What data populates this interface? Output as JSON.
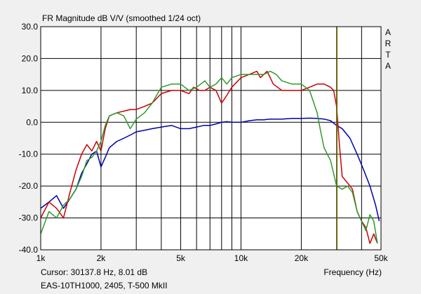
{
  "chart_data": {
    "type": "line",
    "title": "FR Magnitude dB V/V (smoothed 1/24 oct)",
    "xlabel": "Frequency (Hz)",
    "ylabel": "",
    "x_scale": "log",
    "xlim": [
      1000,
      50000
    ],
    "ylim": [
      -40,
      30
    ],
    "grid": true,
    "x_ticks": [
      {
        "value": 1000,
        "label": "1k"
      },
      {
        "value": 2000,
        "label": "2k"
      },
      {
        "value": 5000,
        "label": "5k"
      },
      {
        "value": 10000,
        "label": "10k"
      },
      {
        "value": 20000,
        "label": "20k"
      },
      {
        "value": 50000,
        "label": "50k"
      }
    ],
    "y_ticks": [
      {
        "value": 30,
        "label": "30.0"
      },
      {
        "value": 20,
        "label": "20.0"
      },
      {
        "value": 10,
        "label": "10.0"
      },
      {
        "value": 0,
        "label": "0.0"
      },
      {
        "value": -10,
        "label": "-10.0"
      },
      {
        "value": -20,
        "label": "-20.0"
      },
      {
        "value": -30,
        "label": "-30.0"
      },
      {
        "value": -40,
        "label": "-40.0"
      }
    ],
    "cursor_x": 30137.8,
    "series": [
      {
        "color": "#0000aa",
        "x": [
          1000,
          1100,
          1200,
          1300,
          1400,
          1500,
          1600,
          1700,
          1800,
          1900,
          2000,
          2100,
          2200,
          2400,
          2600,
          2800,
          3000,
          3300,
          3600,
          4000,
          4500,
          5000,
          5500,
          6000,
          6500,
          7000,
          7500,
          8000,
          8500,
          9000,
          10000,
          11000,
          12000,
          13000,
          14000,
          16000,
          18000,
          20000,
          22000,
          24000,
          26000,
          28000,
          30000,
          32000,
          35000,
          38000,
          41000,
          44000,
          47000,
          49000
        ],
        "y": [
          -27,
          -25,
          -23,
          -27,
          -24,
          -21,
          -16,
          -13,
          -10,
          -9,
          -14,
          -11,
          -8,
          -6,
          -5,
          -4,
          -3,
          -2.5,
          -2,
          -1.5,
          -1,
          -2,
          -2,
          -1.5,
          -1,
          -1,
          -0.5,
          0,
          0.2,
          0,
          0,
          0.5,
          0.8,
          0.8,
          1,
          1,
          1.2,
          1.2,
          1.3,
          1.2,
          1,
          0.5,
          -1,
          -2,
          -5,
          -10,
          -15,
          -20,
          -26,
          -31
        ]
      },
      {
        "color": "#cc0000",
        "x": [
          1000,
          1100,
          1200,
          1300,
          1400,
          1500,
          1600,
          1700,
          1800,
          1900,
          2000,
          2100,
          2200,
          2400,
          2600,
          2800,
          3000,
          3300,
          3600,
          4000,
          4500,
          5000,
          5500,
          5800,
          6200,
          6600,
          7000,
          7500,
          8000,
          8400,
          9000,
          10000,
          11000,
          12000,
          12500,
          13500,
          14500,
          16000,
          18000,
          20000,
          22000,
          24000,
          26000,
          28000,
          29000,
          30000,
          31000,
          32000,
          34000,
          36000,
          38000,
          40000,
          42000,
          44000,
          46000,
          48000
        ],
        "y": [
          -30,
          -25,
          -27,
          -30,
          -22,
          -15,
          -10,
          -7,
          -9,
          -6,
          -9,
          -2,
          2,
          3,
          3.5,
          4,
          4,
          5,
          6,
          9,
          10,
          10,
          9,
          11,
          10,
          10,
          11,
          10,
          6,
          8,
          11,
          14,
          15,
          16,
          14,
          16,
          12,
          10,
          10,
          10,
          11,
          12,
          12,
          11,
          10,
          5,
          -7,
          -17,
          -19,
          -21,
          -28,
          -31,
          -33,
          -38,
          -35,
          -38
        ]
      },
      {
        "color": "#2e9a2e",
        "x": [
          1000,
          1100,
          1200,
          1300,
          1400,
          1500,
          1600,
          1700,
          1800,
          1900,
          2000,
          2100,
          2200,
          2400,
          2600,
          2800,
          3000,
          3300,
          3600,
          4000,
          4500,
          5000,
          5500,
          6000,
          6600,
          7000,
          7500,
          8000,
          8500,
          9000,
          10000,
          11000,
          12000,
          13000,
          14000,
          15000,
          16000,
          18000,
          20000,
          22000,
          24000,
          25000,
          26000,
          28000,
          30000,
          32000,
          34000,
          36000,
          38000,
          40000,
          42000,
          44000,
          46000,
          48000
        ],
        "y": [
          -35,
          -28,
          -30,
          -26,
          -24,
          -21,
          -17,
          -12,
          -11,
          -9,
          -6,
          -1,
          2,
          3,
          2,
          -2,
          1,
          3,
          6,
          11,
          12,
          12,
          10,
          11,
          13,
          11,
          12,
          14,
          12,
          14,
          15,
          15,
          15,
          15,
          16,
          15,
          13,
          12,
          12,
          10,
          3,
          -3,
          -8,
          -12,
          -20,
          -21,
          -20,
          -22,
          -28,
          -31,
          -34,
          -29,
          -31,
          -38
        ]
      }
    ]
  },
  "side_label": [
    "A",
    "R",
    "T",
    "A"
  ],
  "footer": {
    "cursor": "Cursor: 30137.8 Hz, 8.01 dB",
    "device": "EAS-10TH1000, 2405, T-500 MkII"
  }
}
